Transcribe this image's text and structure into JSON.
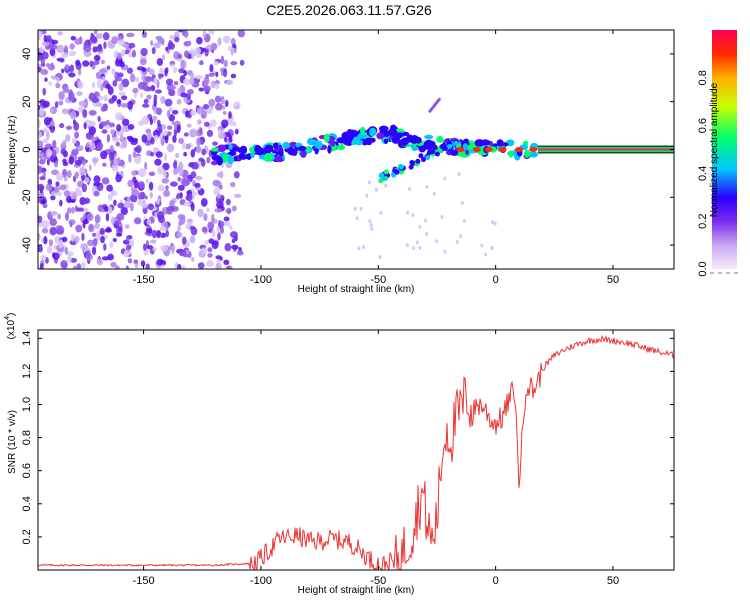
{
  "figure_title": "C2E5.2026.063.11.57.G26",
  "chart_data": [
    {
      "type": "heatmap",
      "title": "C2E5.2026.063.11.57.G26",
      "xlabel": "Height of straight line (km)",
      "ylabel": "Frequency (Hz)",
      "xlim": [
        -195,
        76
      ],
      "ylim": [
        -50,
        50
      ],
      "xticks": [
        -150,
        -100,
        -50,
        0,
        50
      ],
      "yticks": [
        -40,
        -20,
        0,
        20,
        40
      ],
      "colorbar": {
        "label": "Normalized spectral amplitude",
        "range": [
          0,
          1
        ],
        "ticks": [
          "0.0",
          "0.2",
          "0.4",
          "0.6",
          "0.8"
        ],
        "colors": [
          "#f4ecfb",
          "#c9a6f2",
          "#7a2cf0",
          "#2a00ff",
          "#00c8ff",
          "#00ff6a",
          "#c8ff00",
          "#ffb000",
          "#ff2a00",
          "#ff0055"
        ]
      },
      "features": {
        "noise_region_x": [
          -195,
          -108
        ],
        "main_track": {
          "x": [
            -120,
            -92,
            -75,
            -58,
            -45,
            -35,
            -25,
            -10,
            5,
            18,
            76
          ],
          "freq": [
            -2,
            -1,
            2,
            5,
            7,
            3,
            2,
            0,
            0,
            0,
            0
          ]
        },
        "lower_branch": {
          "x": [
            -50,
            -40,
            -30,
            -22,
            -15
          ],
          "freq": [
            -12,
            -8,
            -3,
            1,
            2
          ]
        },
        "upper_streak": {
          "x": [
            -28,
            -24
          ],
          "freq": [
            16,
            21
          ]
        },
        "steady_carrier": {
          "x": [
            18,
            76
          ],
          "freq": 0
        }
      }
    },
    {
      "type": "line",
      "xlabel": "Height of straight line (km)",
      "ylabel": "SNR (10 * v/v)",
      "y_multiplier": "(x10",
      "y_multiplier_exp": "4",
      "y_multiplier_close": ")",
      "xlim": [
        -195,
        76
      ],
      "ylim": [
        0,
        1.45
      ],
      "xticks": [
        -150,
        -100,
        -50,
        0,
        50
      ],
      "yticks": [
        "0.2",
        "0.4",
        "0.6",
        "0.8",
        "1.0",
        "1.2",
        "1.4"
      ],
      "series": [
        {
          "name": "SNR",
          "color": "#ee3333",
          "x": [
            -195,
            -150,
            -120,
            -105,
            -100,
            -92,
            -85,
            -78,
            -70,
            -62,
            -57,
            -52,
            -47,
            -42,
            -38,
            -35,
            -33,
            -31,
            -29,
            -27,
            -25,
            -23,
            -21,
            -19,
            -17,
            -15,
            -12,
            -10,
            -8,
            -5,
            -2,
            0,
            3,
            6,
            8,
            10,
            13,
            16,
            20,
            25,
            30,
            35,
            40,
            45,
            50,
            55,
            60,
            65,
            70,
            76
          ],
          "y": [
            0.03,
            0.03,
            0.03,
            0.04,
            0.08,
            0.2,
            0.22,
            0.18,
            0.2,
            0.18,
            0.12,
            0.06,
            0.04,
            0.08,
            0.18,
            0.3,
            0.42,
            0.5,
            0.3,
            0.2,
            0.35,
            0.7,
            0.9,
            0.82,
            0.95,
            1.0,
            1.1,
            0.95,
            1.02,
            1.0,
            0.92,
            0.9,
            0.94,
            1.05,
            1.12,
            0.55,
            1.15,
            1.1,
            1.22,
            1.3,
            1.34,
            1.37,
            1.39,
            1.4,
            1.39,
            1.38,
            1.36,
            1.34,
            1.32,
            1.3
          ]
        }
      ]
    }
  ]
}
